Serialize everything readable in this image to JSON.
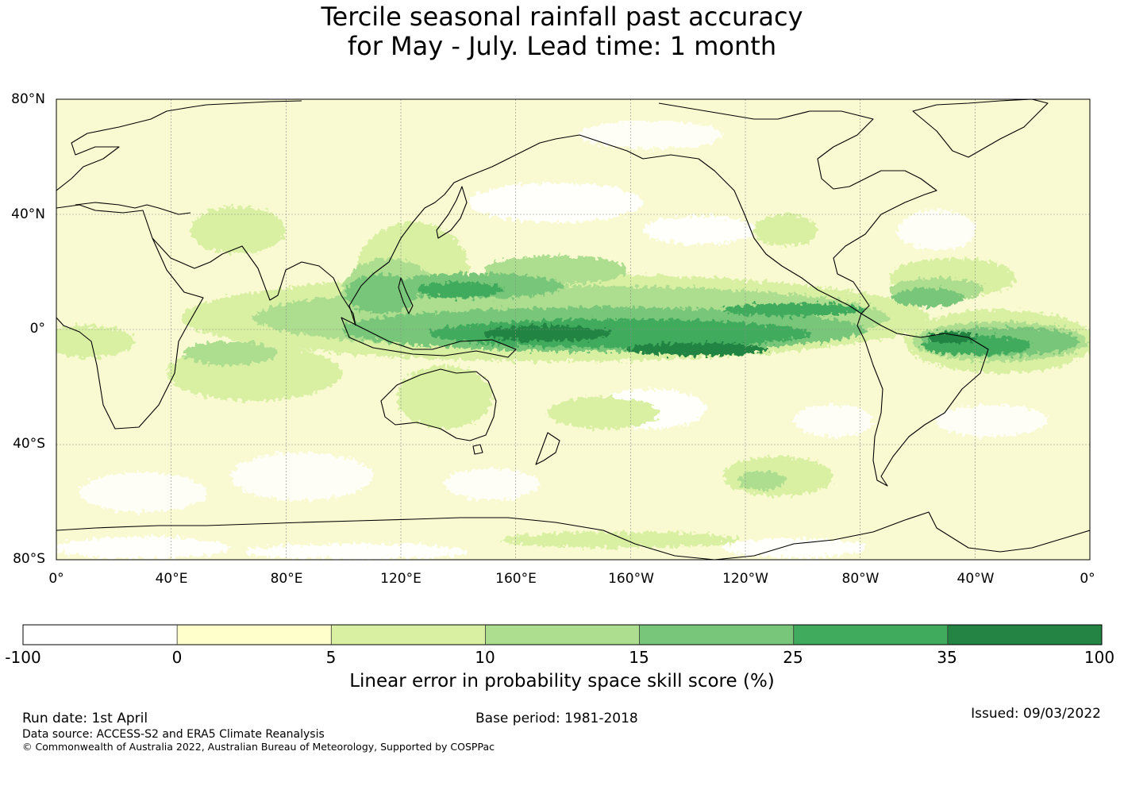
{
  "title": {
    "line1": "Tercile seasonal rainfall past accuracy",
    "line2": "for May - July. Lead time: 1 month"
  },
  "map": {
    "lat_labels": [
      "80°N",
      "40°N",
      "0°",
      "40°S",
      "80°S"
    ],
    "lon_labels": [
      "0°",
      "40°E",
      "80°E",
      "120°E",
      "160°E",
      "160°W",
      "120°W",
      "80°W",
      "40°W",
      "0°"
    ],
    "background_color": "#fafad2",
    "coastline_color": "#000000"
  },
  "colorbar": {
    "ticks": [
      "-100",
      "0",
      "5",
      "10",
      "15",
      "25",
      "35",
      "100"
    ],
    "colors": [
      "#ffffff",
      "#ffffcc",
      "#d9f0a3",
      "#addd8e",
      "#78c679",
      "#41ab5d",
      "#238443"
    ],
    "label": "Linear error in probability space skill score (%)"
  },
  "footer": {
    "run_date": "Run date: 1st April",
    "base_period": "Base period: 1981-2018",
    "issued": "Issued: 09/03/2022",
    "data_source": "Data source: ACCESS-S2 and ERA5 Climate Reanalysis",
    "copyright": "© Commonwealth of Australia 2022, Australian Bureau of Meteorology, Supported by COSPPac"
  }
}
